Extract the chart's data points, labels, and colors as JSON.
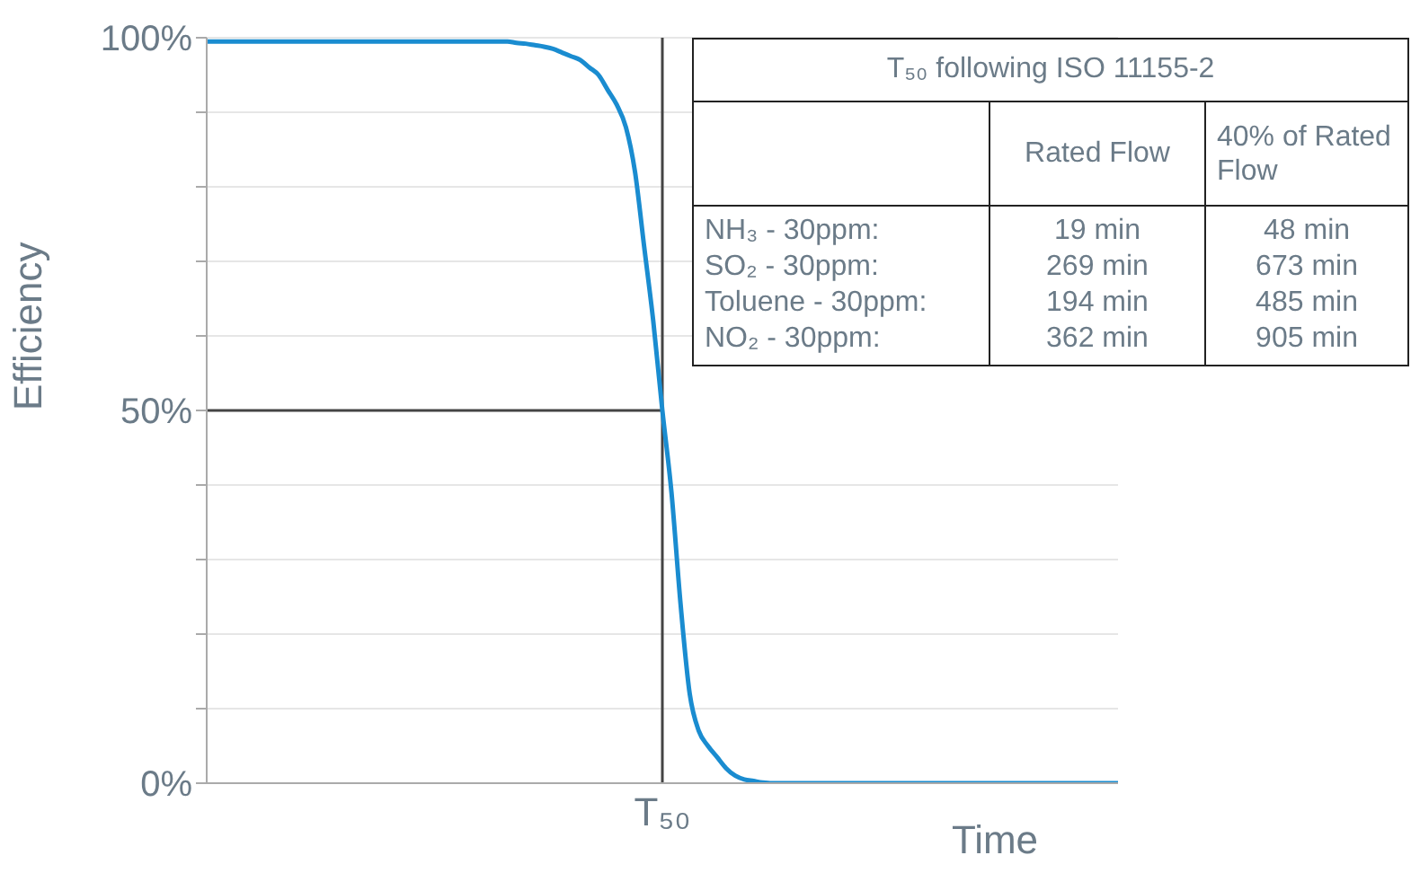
{
  "chart_data": {
    "type": "line",
    "xlabel": "Time",
    "ylabel": "Efficiency",
    "categories": [
      null,
      null,
      null,
      null,
      null,
      null,
      null,
      null,
      null,
      null,
      null,
      null,
      null,
      null,
      null,
      null,
      null,
      null,
      null,
      null,
      null,
      null,
      null,
      null,
      null,
      null,
      null,
      null,
      null,
      null,
      null,
      null,
      null,
      null,
      null,
      null,
      null,
      null,
      null,
      null,
      null,
      null,
      null,
      null,
      null,
      null,
      null,
      null,
      null,
      null,
      "T₅₀",
      null,
      null,
      null,
      null,
      null,
      null,
      null,
      null,
      null,
      null,
      null,
      null,
      null,
      null,
      null,
      null,
      null,
      null,
      null,
      null,
      null,
      null,
      null,
      null,
      null,
      null,
      null,
      null,
      null,
      null,
      null,
      null,
      null,
      null,
      null,
      null,
      null,
      null,
      null,
      null,
      null,
      null,
      null,
      null,
      null,
      null,
      null,
      null,
      null,
      null
    ],
    "series": [
      {
        "color": "#1a8cd0",
        "values": [
          99.5,
          99.5,
          99.5,
          99.5,
          99.5,
          99.5,
          99.5,
          99.5,
          99.5,
          99.5,
          99.5,
          99.5,
          99.5,
          99.5,
          99.5,
          99.5,
          99.5,
          99.5,
          99.5,
          99.5,
          99.5,
          99.5,
          99.5,
          99.5,
          99.5,
          99.5,
          99.5,
          99.5,
          99.5,
          99.5,
          99.5,
          99.5,
          99.5,
          99.5,
          99.3,
          99.2,
          99,
          98.8,
          98.5,
          98,
          97.5,
          97,
          96,
          95,
          93,
          91,
          88,
          82,
          72,
          62,
          50,
          39,
          24,
          12,
          7,
          5,
          3.5,
          2,
          1,
          0.5,
          0.3,
          0.1,
          0,
          0,
          0,
          0,
          0,
          0,
          0,
          0,
          0,
          0,
          0,
          0,
          0,
          0,
          0,
          0,
          0,
          0,
          0,
          0,
          0,
          0,
          0,
          0,
          0,
          0,
          0,
          0,
          0,
          0,
          0,
          0,
          0,
          0,
          0,
          0,
          0,
          0,
          0
        ]
      }
    ],
    "ylim": [
      0,
      100
    ],
    "yticks": [
      {
        "value": 0,
        "label": "0%"
      },
      {
        "value": 10,
        "label": null
      },
      {
        "value": 20,
        "label": null
      },
      {
        "value": 30,
        "label": null
      },
      {
        "value": 40,
        "label": null
      },
      {
        "value": 50,
        "label": "50%"
      },
      {
        "value": 60,
        "label": null
      },
      {
        "value": 70,
        "label": null
      },
      {
        "value": 80,
        "label": null
      },
      {
        "value": 90,
        "label": null
      },
      {
        "value": 100,
        "label": "100%"
      }
    ],
    "grid": "y",
    "marker": "none",
    "line_style": "solid",
    "ref_lines": [
      {
        "axis": "y",
        "value": 50,
        "color": "#444444"
      },
      {
        "axis": "x",
        "value": "T₅₀",
        "color": "#444444"
      }
    ],
    "annotations": [
      "T₅₀ following ISO 11155-2",
      "Rated Flow",
      "40% of Rated Flow",
      "NH₃ - 30ppm:",
      "19 min",
      "48 min",
      "SO₂ - 30ppm:",
      "269 min",
      "673 min",
      "Toluene - 30ppm:",
      "194 min",
      "485 min",
      "NO₂ - 30ppm:",
      "362 min",
      "905 min"
    ]
  }
}
